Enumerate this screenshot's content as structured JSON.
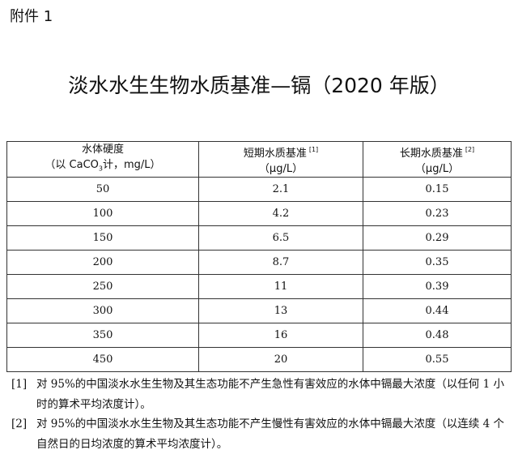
{
  "annex_label": "附件 1",
  "title": "淡水水生生物水质基准—镉（2020 年版）",
  "table": {
    "headers": [
      {
        "line1": "水体硬度",
        "line2_pre": "（以 CaCO",
        "line2_sub": "3",
        "line2_post": "计，mg/L）"
      },
      {
        "line1": "短期水质基准",
        "ref": "[1]",
        "line2": "（μg/L）"
      },
      {
        "line1": "长期水质基准",
        "ref": "[2]",
        "line2": "（μg/L）"
      }
    ],
    "rows": [
      [
        "50",
        "2.1",
        "0.15"
      ],
      [
        "100",
        "4.2",
        "0.23"
      ],
      [
        "150",
        "6.5",
        "0.29"
      ],
      [
        "200",
        "8.7",
        "0.35"
      ],
      [
        "250",
        "11",
        "0.39"
      ],
      [
        "300",
        "13",
        "0.44"
      ],
      [
        "350",
        "16",
        "0.48"
      ],
      [
        "450",
        "20",
        "0.55"
      ]
    ]
  },
  "notes": [
    {
      "mark": "[1]",
      "text": "对 95%的中国淡水水生生物及其生态功能不产生急性有害效应的水体中镉最大浓度（以任何 1 小时的算术平均浓度计）。"
    },
    {
      "mark": "[2]",
      "text": "对 95%的中国淡水水生生物及其生态功能不产生慢性有害效应的水体中镉最大浓度（以连续 4 个自然日的日均浓度的算术平均浓度计）。"
    }
  ]
}
